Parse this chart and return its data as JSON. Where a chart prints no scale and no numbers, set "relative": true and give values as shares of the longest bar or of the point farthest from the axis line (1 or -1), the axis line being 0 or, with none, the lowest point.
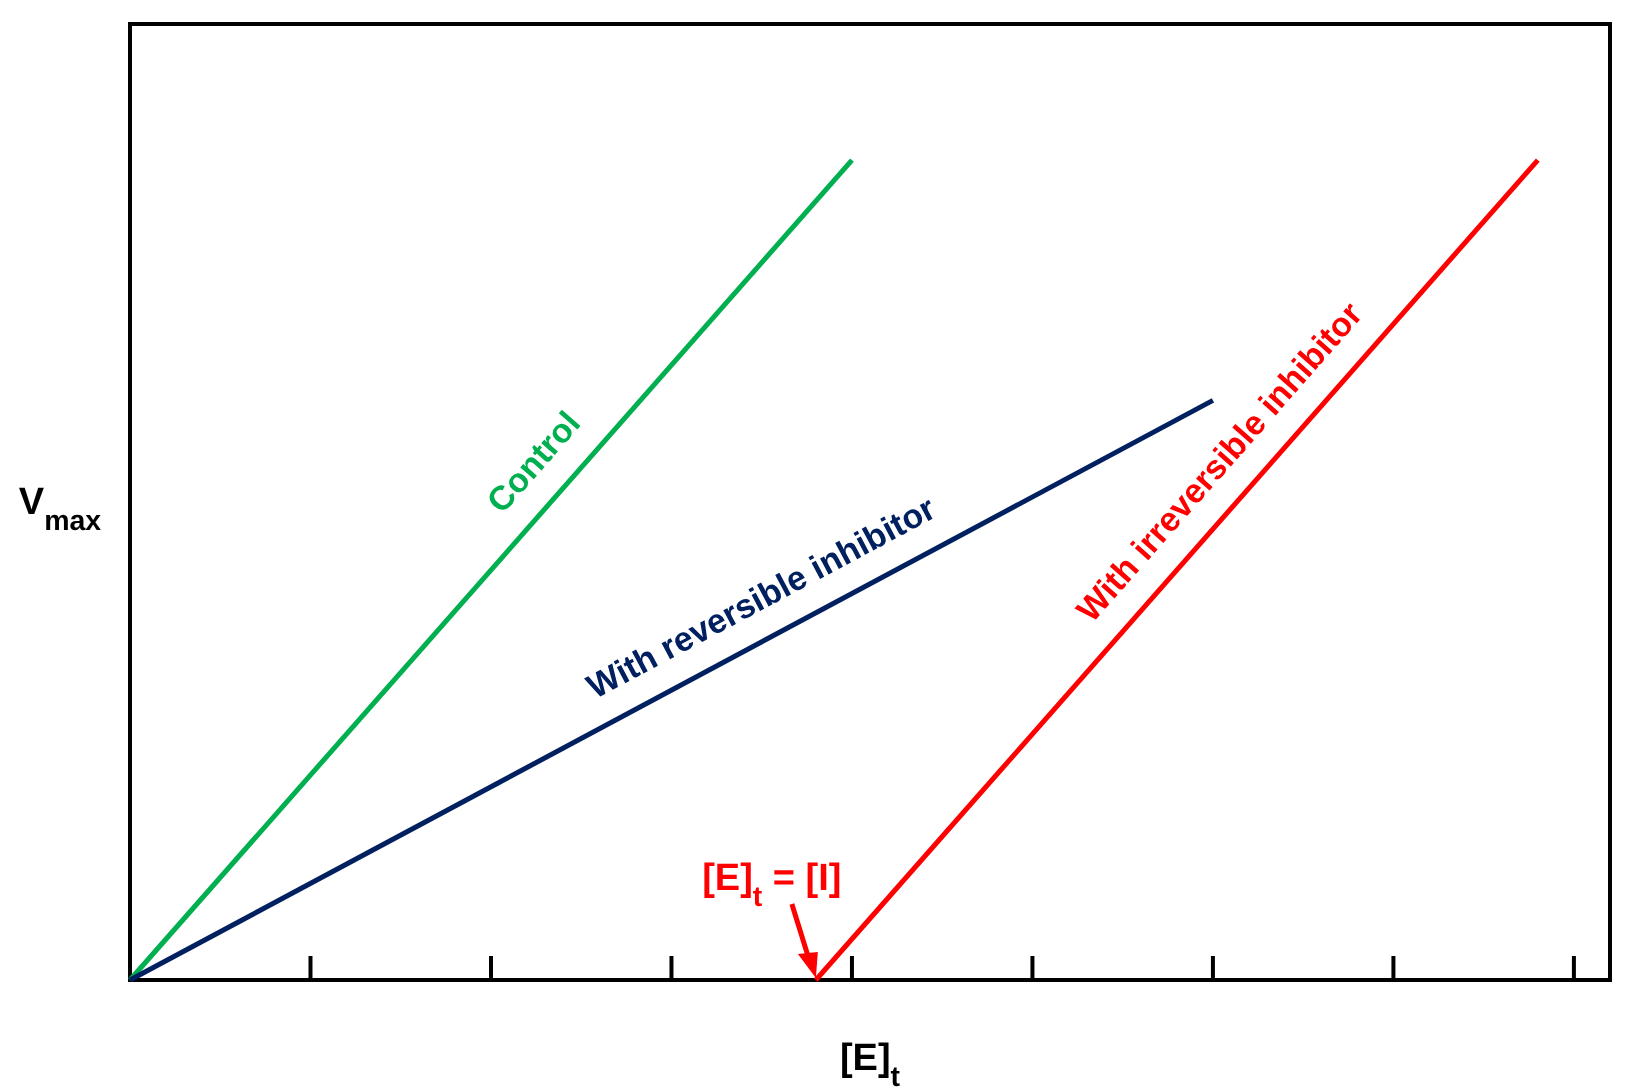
{
  "chart_data": {
    "type": "line",
    "relative": true,
    "xlabel": "[E]$_{t}$",
    "ylabel": "V$_{max}$",
    "categories": [
      null,
      null,
      null,
      null,
      null,
      null,
      null,
      null,
      null,
      null,
      null,
      null,
      null,
      null,
      null,
      null,
      null,
      null,
      null,
      null,
      null,
      null,
      null,
      null,
      null,
      null,
      null,
      null,
      null,
      null,
      null,
      null,
      null,
      null,
      null,
      null,
      null,
      null,
      null,
      null,
      null,
      null
    ],
    "series": [
      {
        "name": "Control",
        "color": "#00b050",
        "values": [
          0,
          null,
          null,
          null,
          null,
          null,
          null,
          null,
          null,
          null,
          null,
          null,
          null,
          null,
          null,
          null,
          null,
          null,
          null,
          null,
          1,
          null,
          null,
          null,
          null,
          null,
          null,
          null,
          null,
          null,
          null,
          null,
          null,
          null,
          null,
          null,
          null,
          null,
          null,
          null,
          null,
          null
        ]
      },
      {
        "name": "With reversible inhibitor",
        "color": "#002060",
        "values": [
          0,
          null,
          null,
          null,
          null,
          null,
          null,
          null,
          null,
          null,
          null,
          null,
          null,
          null,
          null,
          null,
          null,
          null,
          null,
          null,
          null,
          null,
          null,
          null,
          null,
          null,
          null,
          null,
          null,
          null,
          0.707,
          null,
          null,
          null,
          null,
          null,
          null,
          null,
          null,
          null,
          null,
          null
        ]
      },
      {
        "name": "With irreversible inhibitor",
        "color": "#ff0000",
        "values": [
          null,
          null,
          null,
          null,
          null,
          null,
          null,
          null,
          null,
          null,
          null,
          null,
          null,
          null,
          null,
          null,
          null,
          null,
          null,
          0,
          null,
          null,
          null,
          null,
          null,
          null,
          null,
          null,
          null,
          null,
          null,
          null,
          null,
          null,
          null,
          null,
          null,
          null,
          null,
          1,
          null,
          null
        ]
      }
    ],
    "annotations": [
      "[E]$_{t}$ = [I]"
    ],
    "legend": false,
    "marker": "none",
    "line_style": "solid"
  }
}
